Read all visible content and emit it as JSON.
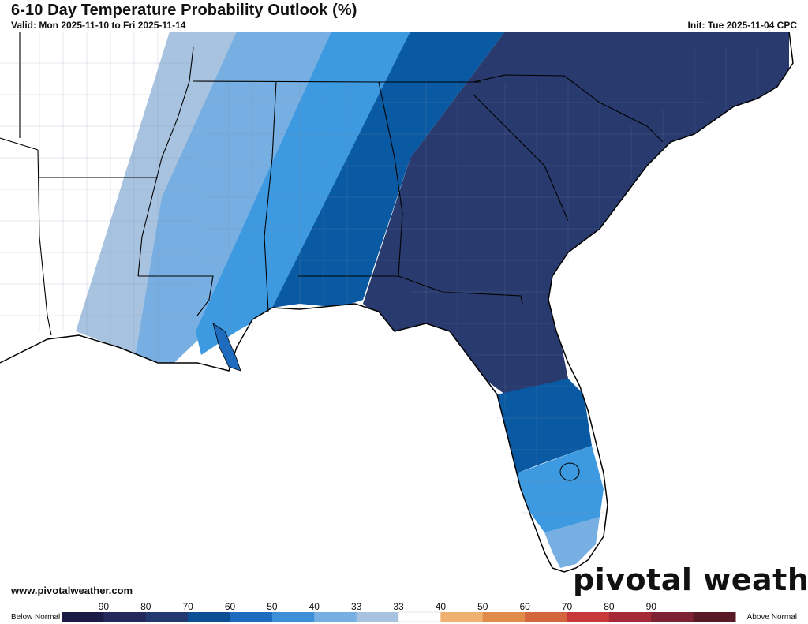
{
  "header": {
    "title": "6-10 Day Temperature Probability Outlook (%)",
    "valid": "Valid: Mon 2025-11-10 to Fri 2025-11-14",
    "init": "Init: Tue 2025-11-04 CPC"
  },
  "footer": {
    "website": "www.pivotalweather.com",
    "brand": "pivotal weather"
  },
  "legend": {
    "below_label": "Below Normal",
    "above_label": "Above Normal",
    "ticks": [
      "90",
      "80",
      "70",
      "60",
      "50",
      "40",
      "33",
      "33",
      "40",
      "50",
      "60",
      "70",
      "80",
      "90"
    ],
    "colors": [
      "#1b1b46",
      "#252a5a",
      "#233a70",
      "#0d4f95",
      "#1f6bbd",
      "#3d90d8",
      "#78afe2",
      "#a7c3e0",
      "#ffffff",
      "#f0b070",
      "#e08b49",
      "#d3663d",
      "#c7383a",
      "#a62938",
      "#7c2232",
      "#5a1a25"
    ]
  },
  "map": {
    "categories": [
      {
        "name": "below-33",
        "color": "#a7c3e0"
      },
      {
        "name": "below-40",
        "color": "#78afe2"
      },
      {
        "name": "below-50",
        "color": "#3d9ae0"
      },
      {
        "name": "below-60",
        "color": "#1f6bbd"
      },
      {
        "name": "below-70",
        "color": "#0a5aa3"
      },
      {
        "name": "below-80",
        "color": "#283a6e"
      }
    ]
  }
}
